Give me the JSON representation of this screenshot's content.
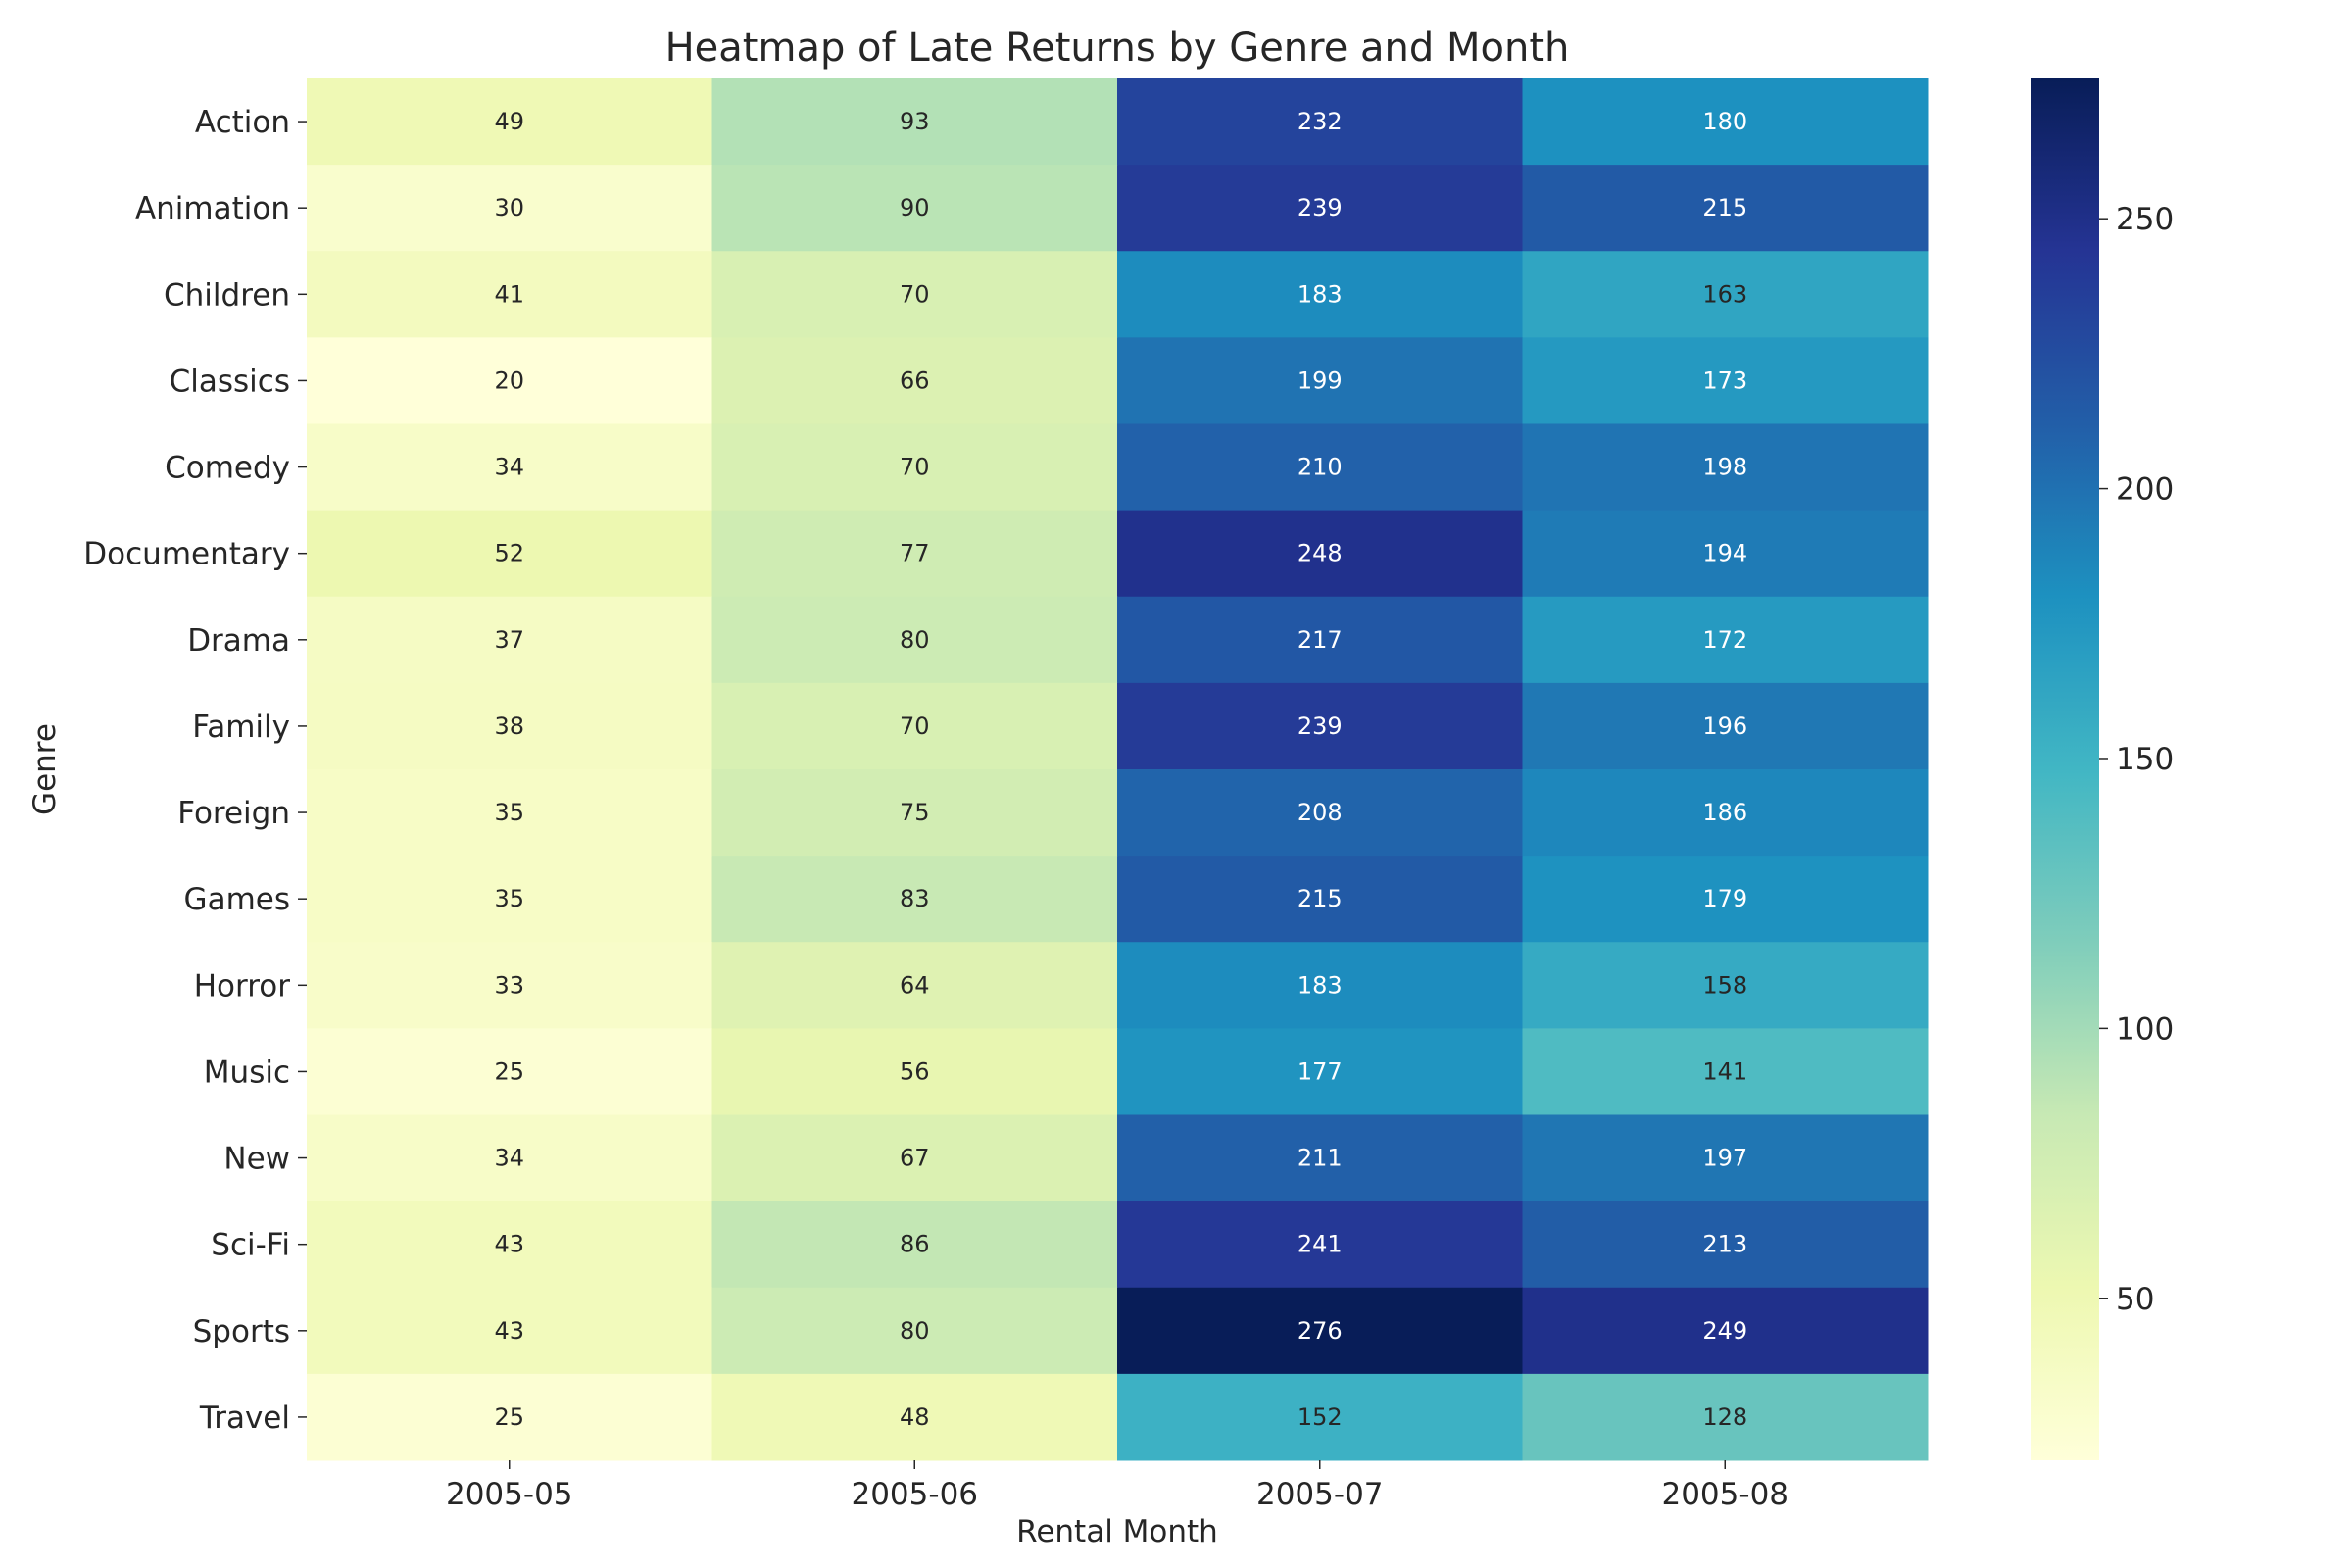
{
  "chart_data": {
    "type": "heatmap",
    "title": "Heatmap of Late Returns by Genre and Month",
    "xlabel": "Rental Month",
    "ylabel": "Genre",
    "x_categories": [
      "2005-05",
      "2005-06",
      "2005-07",
      "2005-08"
    ],
    "y_categories": [
      "Action",
      "Animation",
      "Children",
      "Classics",
      "Comedy",
      "Documentary",
      "Drama",
      "Family",
      "Foreign",
      "Games",
      "Horror",
      "Music",
      "New",
      "Sci-Fi",
      "Sports",
      "Travel"
    ],
    "values": [
      [
        49,
        93,
        232,
        180
      ],
      [
        30,
        90,
        239,
        215
      ],
      [
        41,
        70,
        183,
        163
      ],
      [
        20,
        66,
        199,
        173
      ],
      [
        34,
        70,
        210,
        198
      ],
      [
        52,
        77,
        248,
        194
      ],
      [
        37,
        80,
        217,
        172
      ],
      [
        38,
        70,
        239,
        196
      ],
      [
        35,
        75,
        208,
        186
      ],
      [
        35,
        83,
        215,
        179
      ],
      [
        33,
        64,
        183,
        158
      ],
      [
        25,
        56,
        177,
        141
      ],
      [
        34,
        67,
        211,
        197
      ],
      [
        43,
        86,
        241,
        213
      ],
      [
        43,
        80,
        276,
        249
      ],
      [
        25,
        48,
        152,
        128
      ]
    ],
    "colormap": "YlGnBu",
    "vmin": 20,
    "vmax": 276,
    "colorbar_ticks": [
      50,
      100,
      150,
      200,
      250
    ],
    "annotations": true
  }
}
